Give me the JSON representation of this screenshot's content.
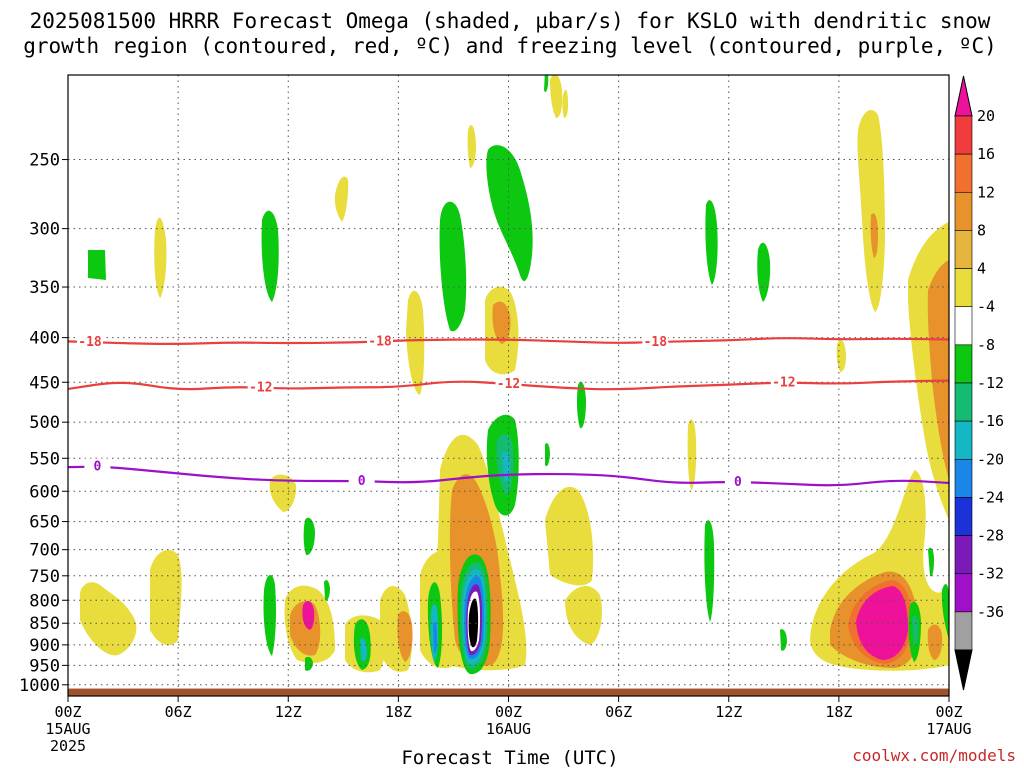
{
  "chart_data": {
    "type": "heatmap",
    "title_line1": "2025081500 HRRR Forecast Omega (shaded, µbar/s) for KSLO with dendritic snow",
    "title_line2": "growth region (contoured, red, ºC) and freezing level (contoured, purple, ºC)",
    "xlabel": "Forecast Time (UTC)",
    "ylabel": "",
    "x_axis": {
      "range_hours": [
        0,
        48
      ],
      "ticks": [
        {
          "hour": 0,
          "label": "00Z",
          "sub1": "15AUG",
          "sub2": "2025"
        },
        {
          "hour": 6,
          "label": "06Z"
        },
        {
          "hour": 12,
          "label": "12Z"
        },
        {
          "hour": 18,
          "label": "18Z"
        },
        {
          "hour": 24,
          "label": "00Z",
          "sub1": "16AUG"
        },
        {
          "hour": 30,
          "label": "06Z"
        },
        {
          "hour": 36,
          "label": "12Z"
        },
        {
          "hour": 42,
          "label": "18Z"
        },
        {
          "hour": 48,
          "label": "00Z",
          "sub1": "17AUG"
        }
      ]
    },
    "y_axis": {
      "unit": "hPa",
      "scale": "log-pressure",
      "range": [
        1030,
        200
      ],
      "ticks": [
        "250",
        "300",
        "350",
        "400",
        "450",
        "500",
        "550",
        "600",
        "650",
        "700",
        "750",
        "800",
        "850",
        "900",
        "950",
        "1000"
      ]
    },
    "grid": true,
    "colorbar": {
      "position": "right",
      "labels": [
        "20",
        "16",
        "12",
        "8",
        "4",
        "-4",
        "-8",
        "-12",
        "-16",
        "-20",
        "-24",
        "-28",
        "-32",
        "-36"
      ],
      "colors": [
        "#ee1199",
        "#f03c3c",
        "#f07030",
        "#e8922c",
        "#e5b53d",
        "#e8dd3c",
        "#ffffff",
        "#0dc810",
        "#13bb73",
        "#13b8c4",
        "#1a86e8",
        "#1a32d8",
        "#7a1ab8",
        "#a010c8",
        "#a0a0a0",
        "#000000"
      ]
    },
    "contours": [
      {
        "name": "dendritic snow growth",
        "color": "#e84040",
        "labels": [
          "-18",
          "-18",
          "-18"
        ],
        "values_hpa": [
          [
            0,
            404
          ],
          [
            3,
            406
          ],
          [
            6,
            407
          ],
          [
            9,
            405
          ],
          [
            12,
            406
          ],
          [
            16,
            405
          ],
          [
            18,
            403
          ],
          [
            21,
            402
          ],
          [
            24,
            402
          ],
          [
            27,
            404
          ],
          [
            30,
            406
          ],
          [
            33,
            404
          ],
          [
            36,
            403
          ],
          [
            39,
            400
          ],
          [
            42,
            402
          ],
          [
            45,
            401
          ],
          [
            48,
            402
          ]
        ]
      },
      {
        "name": "dendritic snow growth",
        "color": "#e84040",
        "labels": [
          "-12",
          "-12",
          "-12"
        ],
        "values_hpa": [
          [
            0,
            458
          ],
          [
            3,
            448
          ],
          [
            6,
            460
          ],
          [
            9,
            455
          ],
          [
            12,
            458
          ],
          [
            15,
            456
          ],
          [
            18,
            456
          ],
          [
            21,
            448
          ],
          [
            24,
            452
          ],
          [
            27,
            457
          ],
          [
            30,
            459
          ],
          [
            33,
            455
          ],
          [
            36,
            453
          ],
          [
            39,
            450
          ],
          [
            42,
            452
          ],
          [
            45,
            449
          ],
          [
            48,
            448
          ]
        ]
      },
      {
        "name": "freezing level",
        "color": "#9b10c8",
        "labels": [
          "0",
          "0",
          "0"
        ],
        "values_hpa": [
          [
            0,
            563
          ],
          [
            2,
            562
          ],
          [
            5,
            570
          ],
          [
            9,
            580
          ],
          [
            12,
            584
          ],
          [
            16,
            584
          ],
          [
            19,
            587
          ],
          [
            22,
            578
          ],
          [
            24,
            574
          ],
          [
            27,
            573
          ],
          [
            30,
            576
          ],
          [
            33,
            588
          ],
          [
            36,
            585
          ],
          [
            39,
            588
          ],
          [
            42,
            592
          ],
          [
            45,
            582
          ],
          [
            48,
            587
          ]
        ]
      }
    ],
    "ground": {
      "color": "#a0522d",
      "from_hpa": 1010
    }
  },
  "credit": "coolwx.com/models"
}
